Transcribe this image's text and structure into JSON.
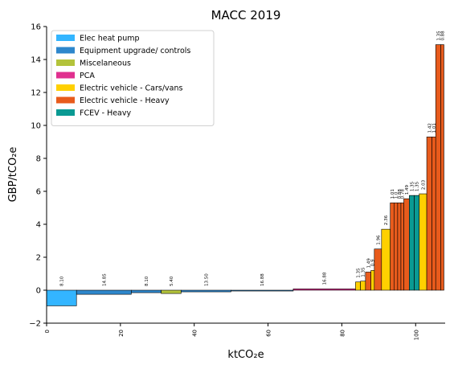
{
  "chart_data": {
    "type": "bar",
    "subtype": "marginal-abatement-cost-curve",
    "title": "MACC 2019",
    "xlabel": "ktCO₂e",
    "ylabel": "GBP/tCO₂e",
    "xlim": [
      0,
      108
    ],
    "ylim": [
      -2,
      16
    ],
    "x_ticks": [
      0,
      20,
      40,
      60,
      80,
      100
    ],
    "y_ticks": [
      -2,
      0,
      2,
      4,
      6,
      8,
      10,
      12,
      14,
      16
    ],
    "grid": false,
    "legend_position": "upper-left",
    "legend": [
      {
        "name": "Elec heat pump",
        "color": "#33b5ff"
      },
      {
        "name": "Equipment upgrade/ controls",
        "color": "#2e87cc"
      },
      {
        "name": "Miscelaneous",
        "color": "#b3c33b"
      },
      {
        "name": "PCA",
        "color": "#e0308f"
      },
      {
        "name": "Electric vehicle - Cars/vans",
        "color": "#ffd000"
      },
      {
        "name": "Electric vehicle - Heavy",
        "color": "#e85b1c"
      },
      {
        "name": "FCEV - Heavy",
        "color": "#0a9a93"
      }
    ],
    "bars": [
      {
        "category": "Elec heat pump",
        "width": 8.1,
        "value": -0.95,
        "label": "8.10"
      },
      {
        "category": "Equipment upgrade/ controls",
        "width": 14.85,
        "value": -0.25,
        "label": "14.85"
      },
      {
        "category": "Equipment upgrade/ controls",
        "width": 8.1,
        "value": -0.15,
        "label": "8.10"
      },
      {
        "category": "Miscelaneous",
        "width": 5.4,
        "value": -0.2,
        "label": "5.40"
      },
      {
        "category": "Equipment upgrade/ controls",
        "width": 13.5,
        "value": -0.1,
        "label": "13.50"
      },
      {
        "category": "Equipment upgrade/ controls",
        "width": 16.88,
        "value": -0.05,
        "label": "16.88"
      },
      {
        "category": "PCA",
        "width": 16.88,
        "value": 0.08,
        "label": "16.88"
      },
      {
        "category": "Electric vehicle - Cars/vans",
        "width": 1.35,
        "value": 0.5,
        "label": "1.35"
      },
      {
        "category": "Electric vehicle - Cars/vans",
        "width": 1.35,
        "value": 0.55,
        "label": "1.35"
      },
      {
        "category": "Electric vehicle - Heavy",
        "width": 1.49,
        "value": 1.1,
        "label": "1.49"
      },
      {
        "category": "Electric vehicle - Cars/vans",
        "width": 0.9,
        "value": 1.2,
        "label": "0.9"
      },
      {
        "category": "Electric vehicle - Heavy",
        "width": 1.96,
        "value": 2.5,
        "label": "1.96"
      },
      {
        "category": "Electric vehicle - Cars/vans",
        "width": 2.36,
        "value": 3.7,
        "label": "2.36"
      },
      {
        "category": "Electric vehicle - Heavy",
        "width": 1.01,
        "value": 5.3,
        "label": "1.01"
      },
      {
        "category": "Electric vehicle - Heavy",
        "width": 1.0,
        "value": 5.3,
        "label": "1.0"
      },
      {
        "category": "Electric vehicle - Heavy",
        "width": 0.88,
        "value": 5.3,
        "label": "0.88"
      },
      {
        "category": "Electric vehicle - Heavy",
        "width": 0.78,
        "value": 5.3,
        "label": "0.78"
      },
      {
        "category": "Electric vehicle - Heavy",
        "width": 1.49,
        "value": 5.55,
        "label": "1.49"
      },
      {
        "category": "FCEV - Heavy",
        "width": 1.35,
        "value": 5.75,
        "label": "1.35"
      },
      {
        "category": "FCEV - Heavy",
        "width": 1.35,
        "value": 5.75,
        "label": "1.35"
      },
      {
        "category": "Electric vehicle - Cars/vans",
        "width": 2.03,
        "value": 5.85,
        "label": "2.03"
      },
      {
        "category": "Electric vehicle - Heavy",
        "width": 1.42,
        "value": 9.3,
        "label": "1.42"
      },
      {
        "category": "Electric vehicle - Heavy",
        "width": 1.01,
        "value": 9.3,
        "label": "1.01"
      },
      {
        "category": "Electric vehicle - Heavy",
        "width": 1.35,
        "value": 14.9,
        "label": "1.35"
      },
      {
        "category": "Electric vehicle - Heavy",
        "width": 0.88,
        "value": 14.9,
        "label": "0.88"
      }
    ]
  }
}
